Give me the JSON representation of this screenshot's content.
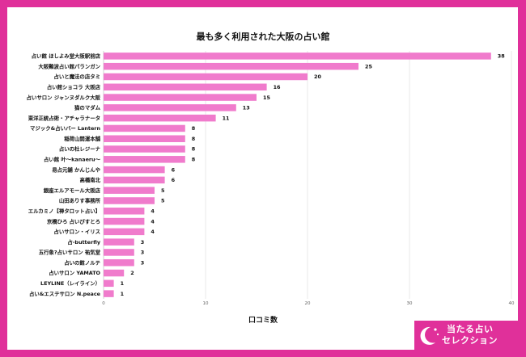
{
  "chart_data": {
    "type": "bar",
    "orientation": "horizontal",
    "title": "最も多く利用された大阪の占い館",
    "xlabel": "口コミ数",
    "ylabel": "",
    "xlim": [
      0,
      40
    ],
    "xticks": [
      0,
      10,
      20,
      30,
      40
    ],
    "grid": true,
    "bar_color": "#f07bcc",
    "categories": [
      "占い館 ほしよみ堂大阪駅前店",
      "大阪難波占い館パランガン",
      "占いと魔法の店タミ",
      "占い館ショコラ 大阪店",
      "占いサロン ジャンヌダルク大阪",
      "猫のマダム",
      "東洋正統占術・アチャラナータ",
      "マジック&占いバー Lantern",
      "稲荷山開運本舗",
      "占いの杜レジーナ",
      "占い館 叶〜kanaeru〜",
      "易占元舗 かんじんや",
      "高橋南北",
      "銀座エルアモール大阪店",
      "山田ありす事務所",
      "エルカミノ【禅タロット占い】",
      "京橋ひろ 占いびすとろ",
      "占いサロン・イリス",
      "占-butterfly",
      "五行象?占いサロン 祐気堂",
      "占いの館ノルテ",
      "占いサロン YAMATO",
      "LEYLINE（レイライン）",
      "占い&エステサロン N.peace"
    ],
    "values": [
      38,
      25,
      20,
      16,
      15,
      13,
      11,
      8,
      8,
      8,
      8,
      6,
      6,
      5,
      5,
      4,
      4,
      4,
      3,
      3,
      3,
      2,
      1,
      1
    ]
  },
  "badge": {
    "line1": "当たる占い",
    "line2": "セレクション",
    "icon": "moon-stars-icon"
  },
  "colors": {
    "accent": "#e0309a",
    "bar": "#f07bcc"
  }
}
